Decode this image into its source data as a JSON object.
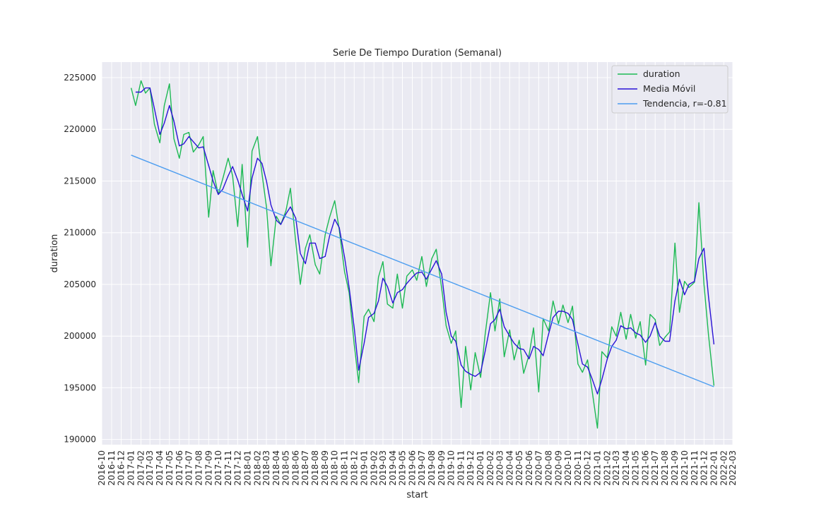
{
  "chart_data": {
    "type": "line",
    "title": "Serie De Tiempo Duration (Semanal)",
    "xlabel": "start",
    "ylabel": "duration",
    "ylim": [
      189500,
      226500
    ],
    "xlim": [
      "2016-10-01",
      "2022-03-01"
    ],
    "grid": true,
    "legend_position": "top-right",
    "yticks": [
      190000,
      195000,
      200000,
      205000,
      210000,
      215000,
      220000,
      225000
    ],
    "xticks": [
      "2016-10",
      "2016-11",
      "2016-12",
      "2017-01",
      "2017-02",
      "2017-03",
      "2017-04",
      "2017-05",
      "2017-06",
      "2017-07",
      "2017-08",
      "2017-09",
      "2017-10",
      "2017-11",
      "2017-12",
      "2018-01",
      "2018-02",
      "2018-03",
      "2018-04",
      "2018-05",
      "2018-06",
      "2018-07",
      "2018-08",
      "2018-09",
      "2018-10",
      "2018-11",
      "2018-12",
      "2019-01",
      "2019-02",
      "2019-03",
      "2019-04",
      "2019-05",
      "2019-06",
      "2019-07",
      "2019-08",
      "2019-09",
      "2019-10",
      "2019-11",
      "2019-12",
      "2020-01",
      "2020-02",
      "2020-03",
      "2020-04",
      "2020-05",
      "2020-06",
      "2020-07",
      "2020-08",
      "2020-09",
      "2020-10",
      "2020-11",
      "2020-12",
      "2021-01",
      "2021-02",
      "2021-03",
      "2021-04",
      "2021-05",
      "2021-06",
      "2021-07",
      "2021-08",
      "2021-09",
      "2021-10",
      "2021-11",
      "2021-12",
      "2022-01",
      "2022-02",
      "2022-03"
    ],
    "series": [
      {
        "name": "duration",
        "color": "#1db954",
        "points": [
          [
            "2017-01-01",
            224000
          ],
          [
            "2017-01-15",
            222300
          ],
          [
            "2017-02-01",
            224700
          ],
          [
            "2017-02-15",
            223500
          ],
          [
            "2017-03-01",
            224000
          ],
          [
            "2017-03-15",
            220500
          ],
          [
            "2017-04-01",
            218700
          ],
          [
            "2017-04-15",
            222300
          ],
          [
            "2017-05-01",
            224400
          ],
          [
            "2017-05-15",
            219100
          ],
          [
            "2017-06-01",
            217200
          ],
          [
            "2017-06-15",
            219500
          ],
          [
            "2017-07-01",
            219700
          ],
          [
            "2017-07-15",
            217800
          ],
          [
            "2017-08-01",
            218500
          ],
          [
            "2017-08-15",
            219300
          ],
          [
            "2017-09-01",
            211500
          ],
          [
            "2017-09-15",
            216000
          ],
          [
            "2017-10-01",
            213700
          ],
          [
            "2017-10-15",
            215200
          ],
          [
            "2017-11-01",
            217200
          ],
          [
            "2017-11-15",
            215500
          ],
          [
            "2017-12-01",
            210600
          ],
          [
            "2017-12-15",
            216600
          ],
          [
            "2018-01-01",
            208600
          ],
          [
            "2018-01-15",
            217900
          ],
          [
            "2018-02-01",
            219300
          ],
          [
            "2018-02-15",
            215700
          ],
          [
            "2018-03-01",
            212500
          ],
          [
            "2018-03-15",
            206800
          ],
          [
            "2018-04-01",
            211600
          ],
          [
            "2018-04-15",
            210800
          ],
          [
            "2018-05-01",
            212100
          ],
          [
            "2018-05-15",
            214300
          ],
          [
            "2018-06-01",
            209100
          ],
          [
            "2018-06-15",
            205000
          ],
          [
            "2018-07-01",
            208500
          ],
          [
            "2018-07-15",
            209800
          ],
          [
            "2018-08-01",
            206900
          ],
          [
            "2018-08-15",
            206000
          ],
          [
            "2018-09-01",
            209800
          ],
          [
            "2018-09-15",
            211500
          ],
          [
            "2018-10-01",
            213100
          ],
          [
            "2018-10-15",
            210300
          ],
          [
            "2018-11-01",
            206200
          ],
          [
            "2018-11-15",
            204200
          ],
          [
            "2018-12-01",
            199200
          ],
          [
            "2018-12-15",
            195500
          ],
          [
            "2019-01-01",
            201900
          ],
          [
            "2019-01-15",
            202600
          ],
          [
            "2019-02-01",
            201400
          ],
          [
            "2019-02-15",
            205700
          ],
          [
            "2019-03-01",
            207200
          ],
          [
            "2019-03-15",
            203100
          ],
          [
            "2019-04-01",
            202700
          ],
          [
            "2019-04-15",
            206000
          ],
          [
            "2019-05-01",
            202700
          ],
          [
            "2019-05-15",
            205800
          ],
          [
            "2019-06-01",
            206400
          ],
          [
            "2019-06-15",
            205400
          ],
          [
            "2019-07-01",
            207700
          ],
          [
            "2019-07-15",
            204800
          ],
          [
            "2019-08-01",
            207500
          ],
          [
            "2019-08-15",
            208400
          ],
          [
            "2019-09-01",
            204600
          ],
          [
            "2019-09-15",
            201000
          ],
          [
            "2019-10-01",
            199300
          ],
          [
            "2019-10-15",
            200500
          ],
          [
            "2019-11-01",
            193100
          ],
          [
            "2019-11-15",
            199000
          ],
          [
            "2019-12-01",
            194800
          ],
          [
            "2019-12-15",
            198400
          ],
          [
            "2020-01-01",
            196000
          ],
          [
            "2020-01-15",
            200100
          ],
          [
            "2020-02-01",
            204200
          ],
          [
            "2020-02-15",
            200500
          ],
          [
            "2020-03-01",
            203600
          ],
          [
            "2020-03-15",
            198000
          ],
          [
            "2020-04-01",
            200600
          ],
          [
            "2020-04-15",
            197700
          ],
          [
            "2020-05-01",
            199600
          ],
          [
            "2020-05-15",
            196400
          ],
          [
            "2020-06-01",
            198200
          ],
          [
            "2020-06-15",
            200800
          ],
          [
            "2020-07-01",
            194600
          ],
          [
            "2020-07-15",
            201700
          ],
          [
            "2020-08-01",
            200500
          ],
          [
            "2020-08-15",
            203400
          ],
          [
            "2020-09-01",
            201200
          ],
          [
            "2020-09-15",
            203000
          ],
          [
            "2020-10-01",
            201300
          ],
          [
            "2020-10-15",
            202900
          ],
          [
            "2020-11-01",
            197300
          ],
          [
            "2020-11-15",
            196500
          ],
          [
            "2020-12-01",
            197700
          ],
          [
            "2020-12-15",
            194800
          ],
          [
            "2021-01-01",
            191100
          ],
          [
            "2021-01-15",
            198500
          ],
          [
            "2021-02-01",
            197900
          ],
          [
            "2021-02-15",
            200900
          ],
          [
            "2021-03-01",
            200000
          ],
          [
            "2021-03-15",
            202300
          ],
          [
            "2021-04-01",
            199700
          ],
          [
            "2021-04-15",
            202100
          ],
          [
            "2021-05-01",
            199800
          ],
          [
            "2021-05-15",
            201400
          ],
          [
            "2021-06-01",
            197200
          ],
          [
            "2021-06-15",
            202100
          ],
          [
            "2021-07-01",
            201600
          ],
          [
            "2021-07-15",
            199100
          ],
          [
            "2021-08-01",
            199900
          ],
          [
            "2021-08-15",
            200400
          ],
          [
            "2021-09-01",
            209000
          ],
          [
            "2021-09-15",
            202300
          ],
          [
            "2021-10-01",
            205300
          ],
          [
            "2021-10-15",
            204700
          ],
          [
            "2021-11-01",
            205200
          ],
          [
            "2021-11-15",
            212900
          ],
          [
            "2021-12-01",
            205000
          ],
          [
            "2021-12-15",
            200100
          ],
          [
            "2022-01-01",
            195200
          ]
        ]
      },
      {
        "name": "Media Móvil",
        "color": "#2a12d6",
        "points": [
          [
            "2017-01-15",
            223600
          ],
          [
            "2017-02-01",
            223600
          ],
          [
            "2017-02-15",
            224000
          ],
          [
            "2017-03-01",
            224000
          ],
          [
            "2017-03-15",
            222000
          ],
          [
            "2017-04-01",
            219500
          ],
          [
            "2017-04-15",
            220600
          ],
          [
            "2017-05-01",
            222300
          ],
          [
            "2017-05-15",
            220800
          ],
          [
            "2017-06-01",
            218400
          ],
          [
            "2017-06-15",
            218600
          ],
          [
            "2017-07-01",
            219300
          ],
          [
            "2017-07-15",
            218800
          ],
          [
            "2017-08-01",
            218200
          ],
          [
            "2017-08-15",
            218300
          ],
          [
            "2017-09-01",
            216500
          ],
          [
            "2017-09-15",
            215000
          ],
          [
            "2017-10-01",
            213700
          ],
          [
            "2017-10-15",
            214200
          ],
          [
            "2017-11-01",
            215500
          ],
          [
            "2017-11-15",
            216400
          ],
          [
            "2017-12-01",
            215100
          ],
          [
            "2017-12-15",
            213700
          ],
          [
            "2018-01-01",
            212100
          ],
          [
            "2018-01-15",
            215300
          ],
          [
            "2018-02-01",
            217200
          ],
          [
            "2018-02-15",
            216700
          ],
          [
            "2018-03-01",
            215000
          ],
          [
            "2018-03-15",
            212700
          ],
          [
            "2018-04-01",
            211200
          ],
          [
            "2018-04-15",
            210800
          ],
          [
            "2018-05-01",
            211800
          ],
          [
            "2018-05-15",
            212500
          ],
          [
            "2018-06-01",
            211400
          ],
          [
            "2018-06-15",
            208000
          ],
          [
            "2018-07-01",
            207000
          ],
          [
            "2018-07-15",
            209000
          ],
          [
            "2018-08-01",
            209000
          ],
          [
            "2018-08-15",
            207500
          ],
          [
            "2018-09-01",
            207700
          ],
          [
            "2018-09-15",
            209700
          ],
          [
            "2018-10-01",
            211300
          ],
          [
            "2018-10-15",
            210500
          ],
          [
            "2018-11-01",
            207600
          ],
          [
            "2018-11-15",
            204700
          ],
          [
            "2018-12-01",
            200800
          ],
          [
            "2018-12-15",
            196700
          ],
          [
            "2019-01-01",
            199300
          ],
          [
            "2019-01-15",
            201800
          ],
          [
            "2019-02-01",
            202200
          ],
          [
            "2019-02-15",
            203400
          ],
          [
            "2019-03-01",
            205600
          ],
          [
            "2019-03-15",
            204800
          ],
          [
            "2019-04-01",
            203200
          ],
          [
            "2019-04-15",
            204200
          ],
          [
            "2019-05-01",
            204500
          ],
          [
            "2019-05-15",
            205100
          ],
          [
            "2019-06-01",
            205700
          ],
          [
            "2019-06-15",
            206100
          ],
          [
            "2019-07-01",
            206200
          ],
          [
            "2019-07-15",
            205500
          ],
          [
            "2019-08-01",
            206500
          ],
          [
            "2019-08-15",
            207300
          ],
          [
            "2019-09-01",
            206000
          ],
          [
            "2019-09-15",
            202300
          ],
          [
            "2019-10-01",
            200000
          ],
          [
            "2019-10-15",
            199500
          ],
          [
            "2019-11-01",
            197200
          ],
          [
            "2019-11-15",
            196600
          ],
          [
            "2019-12-01",
            196300
          ],
          [
            "2019-12-15",
            196100
          ],
          [
            "2020-01-01",
            196500
          ],
          [
            "2020-01-15",
            198500
          ],
          [
            "2020-02-01",
            201200
          ],
          [
            "2020-02-15",
            201600
          ],
          [
            "2020-03-01",
            202600
          ],
          [
            "2020-03-15",
            200900
          ],
          [
            "2020-04-01",
            200000
          ],
          [
            "2020-04-15",
            199300
          ],
          [
            "2020-05-01",
            198800
          ],
          [
            "2020-05-15",
            198700
          ],
          [
            "2020-06-01",
            197800
          ],
          [
            "2020-06-15",
            199000
          ],
          [
            "2020-07-01",
            198700
          ],
          [
            "2020-07-15",
            198100
          ],
          [
            "2020-08-01",
            200200
          ],
          [
            "2020-08-15",
            201800
          ],
          [
            "2020-09-01",
            202400
          ],
          [
            "2020-09-15",
            202400
          ],
          [
            "2020-10-01",
            202200
          ],
          [
            "2020-10-15",
            201600
          ],
          [
            "2020-11-01",
            199200
          ],
          [
            "2020-11-15",
            197300
          ],
          [
            "2020-12-01",
            197000
          ],
          [
            "2020-12-15",
            195900
          ],
          [
            "2021-01-01",
            194400
          ],
          [
            "2021-01-15",
            195800
          ],
          [
            "2021-02-01",
            197800
          ],
          [
            "2021-02-15",
            199000
          ],
          [
            "2021-03-01",
            199600
          ],
          [
            "2021-03-15",
            201000
          ],
          [
            "2021-04-01",
            200700
          ],
          [
            "2021-04-15",
            200800
          ],
          [
            "2021-05-01",
            200300
          ],
          [
            "2021-05-15",
            200100
          ],
          [
            "2021-06-01",
            199400
          ],
          [
            "2021-06-15",
            200000
          ],
          [
            "2021-07-01",
            201300
          ],
          [
            "2021-07-15",
            200000
          ],
          [
            "2021-08-01",
            199500
          ],
          [
            "2021-08-15",
            199500
          ],
          [
            "2021-09-01",
            203400
          ],
          [
            "2021-09-15",
            205500
          ],
          [
            "2021-10-01",
            204000
          ],
          [
            "2021-10-15",
            205000
          ],
          [
            "2021-11-01",
            205300
          ],
          [
            "2021-11-15",
            207500
          ],
          [
            "2021-12-01",
            208500
          ],
          [
            "2021-12-15",
            203800
          ],
          [
            "2022-01-01",
            199200
          ]
        ]
      },
      {
        "name": "Tendencia, r=-0.81",
        "color": "#4c9df0",
        "points": [
          [
            "2017-01-01",
            217500
          ],
          [
            "2022-01-01",
            195100
          ]
        ]
      }
    ]
  }
}
